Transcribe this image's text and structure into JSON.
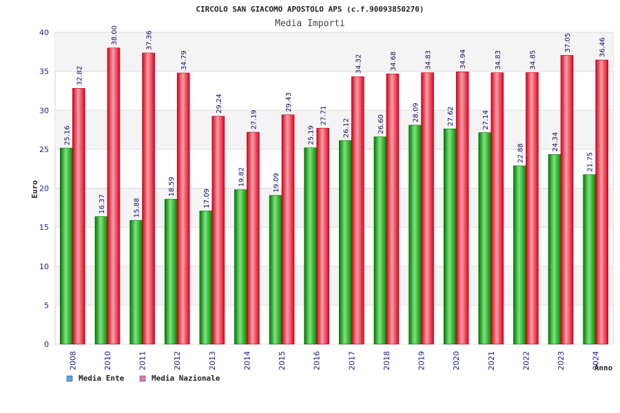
{
  "chart_data": {
    "type": "bar",
    "title": "CIRCOLO SAN GIACOMO APOSTOLO APS (c.f.90093850270)",
    "subtitle": "Media Importi",
    "xlabel": "Anno",
    "ylabel": "Euro",
    "ylim": [
      0,
      40
    ],
    "yticks": [
      0,
      5,
      10,
      15,
      20,
      25,
      30,
      35,
      40
    ],
    "ytick_labels": [
      "0",
      "5",
      "10",
      "15",
      "20",
      "25",
      "30",
      "35",
      "40"
    ],
    "grid": true,
    "legend_position": "bottom-left",
    "categories": [
      "2008",
      "2010",
      "2011",
      "2012",
      "2013",
      "2014",
      "2015",
      "2016",
      "2017",
      "2018",
      "2019",
      "2020",
      "2021",
      "2022",
      "2023",
      "2024"
    ],
    "series": [
      {
        "name": "Media Ente",
        "color": "#00aa00",
        "legend_color": "#5ca0e8",
        "values": [
          25.16,
          16.37,
          15.88,
          18.59,
          17.09,
          19.82,
          19.09,
          25.19,
          26.12,
          26.6,
          28.09,
          27.62,
          27.14,
          22.88,
          24.34,
          21.75
        ],
        "labels": [
          "25.16",
          "16.37",
          "15.88",
          "18.59",
          "17.09",
          "19.82",
          "19.09",
          "25.19",
          "26.12",
          "26.60",
          "28.09",
          "27.62",
          "27.14",
          "22.88",
          "24.34",
          "21.75"
        ]
      },
      {
        "name": "Media Nazionale",
        "color": "#ee1122",
        "legend_color": "#e07ab0",
        "values": [
          32.82,
          38.0,
          37.36,
          34.79,
          29.24,
          27.19,
          29.43,
          27.71,
          34.32,
          34.68,
          34.83,
          34.94,
          34.83,
          34.85,
          37.05,
          36.46
        ],
        "labels": [
          "32.82",
          "38.00",
          "37.36",
          "34.79",
          "29.24",
          "27.19",
          "29.43",
          "27.71",
          "34.32",
          "34.68",
          "34.83",
          "34.94",
          "34.83",
          "34.85",
          "37.05",
          "36.46"
        ]
      }
    ]
  }
}
